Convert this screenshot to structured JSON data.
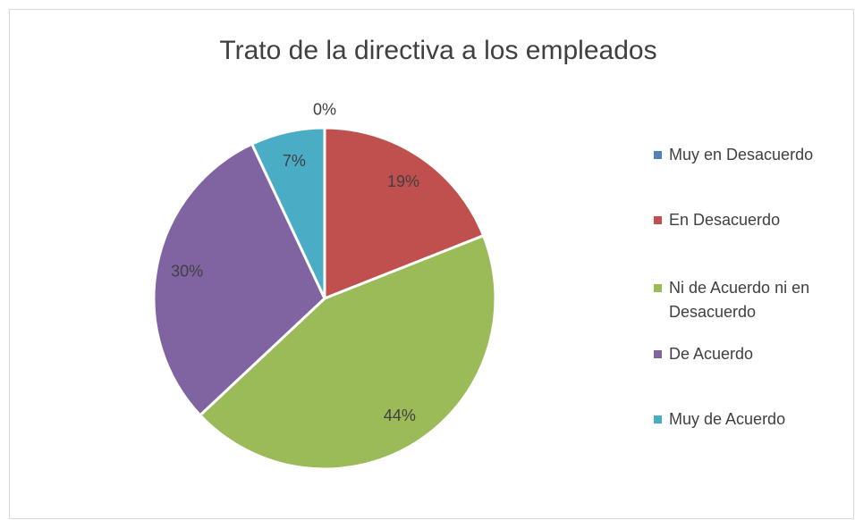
{
  "chart_data": {
    "type": "pie",
    "title": "Trato de la directiva a los empleados",
    "categories": [
      "Muy en Desacuerdo",
      "En Desacuerdo",
      "Ni de Acuerdo ni en Desacuerdo",
      "De Acuerdo",
      "Muy de Acuerdo"
    ],
    "values": [
      0,
      19,
      44,
      30,
      7
    ],
    "value_labels": [
      "0%",
      "19%",
      "44%",
      "30%",
      "7%"
    ],
    "colors": [
      "#4f81bd",
      "#c0504d",
      "#9bbb59",
      "#8064a2",
      "#4bacc6"
    ],
    "legend": "right"
  }
}
